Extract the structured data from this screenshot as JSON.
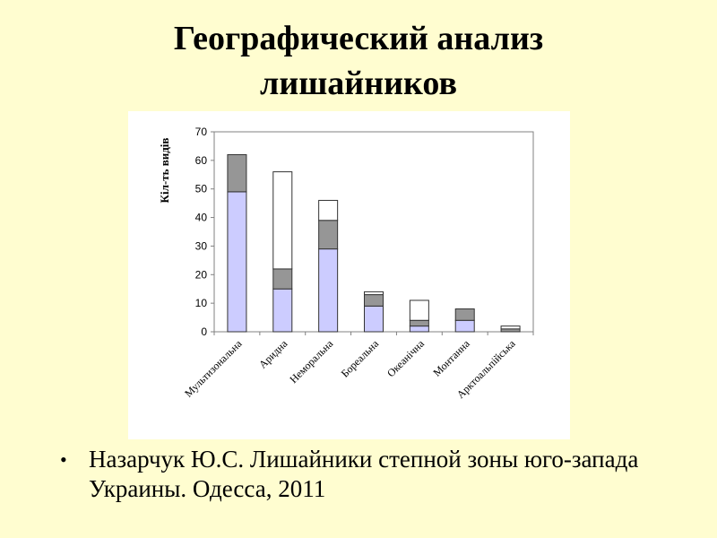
{
  "slide": {
    "title_line1": "Географический анализ",
    "title_line2": "лишайников",
    "citation": "Назарчук Ю.С. Лишайники степной зоны юго-запада Украины. Одесса, 2011",
    "bullet": "•"
  },
  "chart_data": {
    "type": "bar",
    "stacked": true,
    "title": "",
    "xlabel": "",
    "ylabel": "Кіл-ть видів",
    "ylim": [
      0,
      70
    ],
    "yticks": [
      0,
      10,
      20,
      30,
      40,
      50,
      60,
      70
    ],
    "grid": false,
    "categories": [
      "Мультизональна",
      "Аридна",
      "Неморальна",
      "Бореальна",
      "Океанічна",
      "Монтанна",
      "Арктоальпійська"
    ],
    "series": [
      {
        "values": [
          49,
          15,
          29,
          9,
          2,
          4,
          0
        ],
        "color": "#ccccff"
      },
      {
        "values": [
          13,
          7,
          10,
          4,
          2,
          4,
          1
        ],
        "color": "#969696"
      },
      {
        "values": [
          0,
          34,
          7,
          1,
          7,
          0,
          1
        ],
        "color": "#ffffff"
      }
    ]
  }
}
